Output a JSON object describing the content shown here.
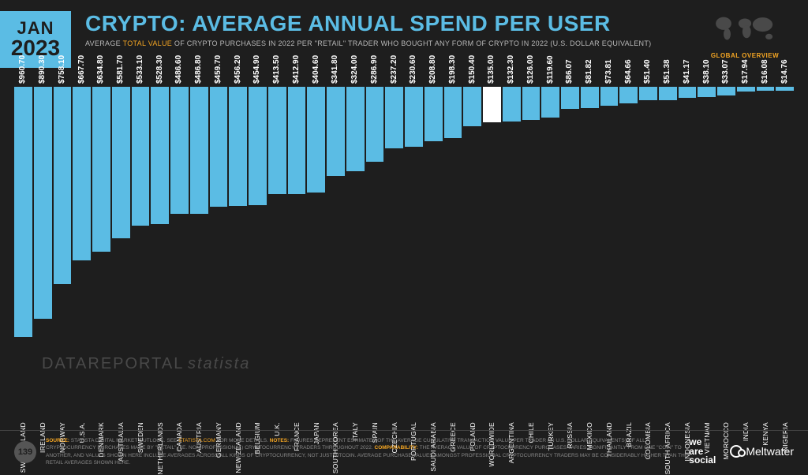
{
  "badge": {
    "month": "JAN",
    "year": "2023"
  },
  "title": "CRYPTO: AVERAGE ANNUAL SPEND PER USER",
  "subtitle_pre": "AVERAGE ",
  "subtitle_hl": "TOTAL VALUE",
  "subtitle_post": " OF CRYPTO PURCHASES IN 2022 PER \"RETAIL\" TRADER WHO BOUGHT ANY FORM OF CRYPTO IN 2022 (U.S. DOLLAR EQUIVALENT)",
  "globe_label": "GLOBAL OVERVIEW",
  "chart": {
    "type": "bar",
    "max_value": 1000,
    "bar_color": "#5bbce4",
    "highlight_color": "#ffffff",
    "background": "#1e1e1e",
    "value_prefix": "$",
    "value_fontsize": 10,
    "label_fontsize": 8.5,
    "data": [
      {
        "label": "SWITZERLAND",
        "value": 960.7
      },
      {
        "label": "IRELAND",
        "value": 890.3
      },
      {
        "label": "NORWAY",
        "value": 758.1
      },
      {
        "label": "U.S.A.",
        "value": 667.7
      },
      {
        "label": "DENMARK",
        "value": 634.8
      },
      {
        "label": "AUSTRALIA",
        "value": 581.7
      },
      {
        "label": "SWEDEN",
        "value": 533.1
      },
      {
        "label": "NETHERLANDS",
        "value": 528.3
      },
      {
        "label": "CANADA",
        "value": 486.6
      },
      {
        "label": "AUSTRIA",
        "value": 486.8
      },
      {
        "label": "GERMANY",
        "value": 459.7
      },
      {
        "label": "NEW ZEALAND",
        "value": 456.2
      },
      {
        "label": "BELGIUM",
        "value": 454.9
      },
      {
        "label": "U.K.",
        "value": 413.5
      },
      {
        "label": "FRANCE",
        "value": 412.9
      },
      {
        "label": "JAPAN",
        "value": 404.6
      },
      {
        "label": "SOUTH KOREA",
        "value": 341.8
      },
      {
        "label": "ITALY",
        "value": 324.0
      },
      {
        "label": "SPAIN",
        "value": 286.9
      },
      {
        "label": "CZECHIA",
        "value": 237.2
      },
      {
        "label": "PORTUGAL",
        "value": 230.6
      },
      {
        "label": "SAUDI ARABIA",
        "value": 208.8
      },
      {
        "label": "GREECE",
        "value": 198.3
      },
      {
        "label": "POLAND",
        "value": 150.4
      },
      {
        "label": "WORLDWIDE",
        "value": 135.0,
        "highlight": true
      },
      {
        "label": "ARGENTINA",
        "value": 132.3
      },
      {
        "label": "CHILE",
        "value": 126.0
      },
      {
        "label": "TURKEY",
        "value": 119.6
      },
      {
        "label": "RUSSIA",
        "value": 86.07
      },
      {
        "label": "MEXICO",
        "value": 81.82
      },
      {
        "label": "THAILAND",
        "value": 73.81
      },
      {
        "label": "BRAZIL",
        "value": 64.66
      },
      {
        "label": "COLOMBIA",
        "value": 51.4
      },
      {
        "label": "SOUTH AFRICA",
        "value": 51.38
      },
      {
        "label": "INDONESIA",
        "value": 41.17
      },
      {
        "label": "VIETNAM",
        "value": 38.1
      },
      {
        "label": "MOROCCO",
        "value": 33.07
      },
      {
        "label": "INDIA",
        "value": 17.94
      },
      {
        "label": "KENYA",
        "value": 16.08
      },
      {
        "label": "NIGERIA",
        "value": 14.76
      }
    ]
  },
  "watermarks": {
    "wm1": "DATAREPORTAL",
    "wm2": "statista"
  },
  "footer": {
    "page": "139",
    "source_lbl": "SOURCE:",
    "source_txt": " STATISTA DIGITAL MARKET OUTLOOK. SEE ",
    "source_lnk": "STATISTA.COM",
    "source_txt2": " FOR MORE DETAILS. ",
    "notes_lbl": "NOTES:",
    "notes_txt": " FIGURES REPRESENT ESTIMATES OF THE AVERAGE CUMULATIVE TRANSACTION VALUE PER TRADER (IN U.S. DOLLAR EQUIVALENTS) OF ALL CRYPTOCURRENCY PURCHASES MADE BY \"RETAIL\" (I.E. NON-PROFESSIONAL) CRYPTOCURRENCY TRADERS THROUGHOUT 2022. ",
    "comp_lbl": "COMPARABILITY:",
    "comp_txt": " THE AVERAGE VALUE OF CRYPTOCURRENCY PURCHASES VARIES SIGNIFICANTLY FROM ONE \"COIN\" TO ANOTHER, AND VALUES SHOWN HERE INCLUDE AVERAGES ACROSS ALL KINDS OF CRYPTOCURRENCY, NOT JUST BITCOIN. AVERAGE PURCHASE VALUES AMONGST PROFESSIONAL CRYPTOCURRENCY TRADERS MAY BE CONSIDERABLY HIGHER THAN THE RETAIL AVERAGES SHOWN HERE."
  },
  "logos": {
    "was_l1": "we",
    "was_l2": "are",
    "was_l3": "social",
    "mw": "Meltwater"
  }
}
